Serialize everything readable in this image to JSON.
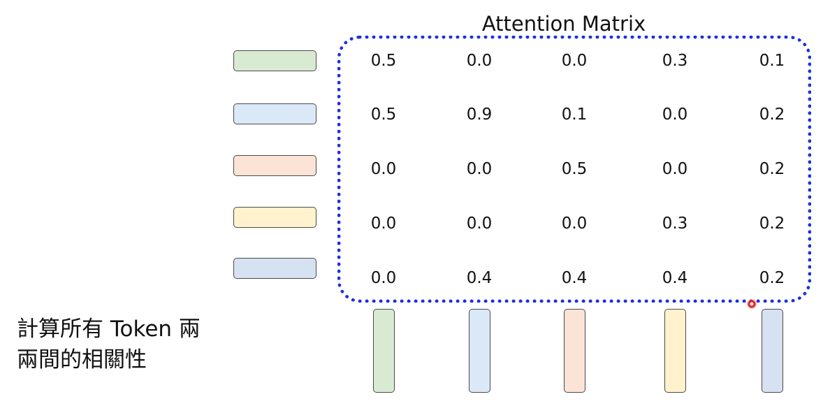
{
  "title": "Attention Matrix",
  "caption": {
    "line1": "計算所有 Token 兩",
    "line2": "兩間的相關性"
  },
  "matrix": {
    "rows": [
      [
        "0.5",
        "0.0",
        "0.0",
        "0.3",
        "0.1"
      ],
      [
        "0.5",
        "0.9",
        "0.1",
        "0.0",
        "0.2"
      ],
      [
        "0.0",
        "0.0",
        "0.5",
        "0.0",
        "0.2"
      ],
      [
        "0.0",
        "0.0",
        "0.0",
        "0.3",
        "0.2"
      ],
      [
        "0.0",
        "0.4",
        "0.4",
        "0.4",
        "0.2"
      ]
    ]
  },
  "token_colors": [
    "#d9ead3",
    "#dae8f7",
    "#fbe4d5",
    "#fff2cc",
    "#d6e1f1"
  ],
  "box_color": "#1f2fe0"
}
